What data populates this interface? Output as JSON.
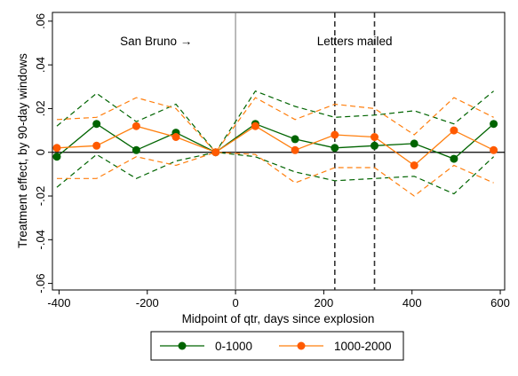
{
  "chart_data": {
    "type": "line",
    "xlabel": "Midpoint of qtr, days since explosion",
    "ylabel": "Treatment effect, by 90-day windows",
    "xlim": [
      -415,
      610
    ],
    "ylim": [
      -0.063,
      0.064
    ],
    "xticks": [
      -400,
      -200,
      0,
      200,
      400,
      600
    ],
    "xtick_labels": [
      "-400",
      "-200",
      "0",
      "200",
      "400",
      "600"
    ],
    "yticks": [
      -0.06,
      -0.04,
      -0.02,
      0,
      0.02,
      0.04,
      0.06
    ],
    "ytick_labels": [
      "-.06",
      "-.04",
      "-.02",
      "0",
      ".02",
      ".04",
      ".06"
    ],
    "grid": false,
    "legend_position": "bottom",
    "hline": 0,
    "vlines": [
      {
        "x": 0,
        "style": "solid"
      },
      {
        "x": 225,
        "style": "dashed"
      },
      {
        "x": 315,
        "style": "dashed"
      }
    ],
    "annotations": [
      {
        "text": "San Bruno →",
        "x": -180,
        "y": 0.049
      },
      {
        "text": "Letters mailed",
        "x": 270,
        "y": 0.049
      }
    ],
    "x": [
      -405,
      -315,
      -225,
      -135,
      -45,
      45,
      135,
      225,
      315,
      405,
      495,
      585
    ],
    "series": [
      {
        "name": "0-1000",
        "color": "#006400",
        "values": [
          -0.002,
          0.013,
          0.001,
          0.009,
          0.0,
          0.013,
          0.006,
          0.002,
          0.003,
          0.004,
          -0.003,
          0.013
        ],
        "ci_upper": [
          0.012,
          0.027,
          0.014,
          0.022,
          0.0,
          0.028,
          0.021,
          0.016,
          0.017,
          0.019,
          0.013,
          0.028
        ],
        "ci_lower": [
          -0.016,
          -0.001,
          -0.012,
          -0.004,
          0.0,
          -0.002,
          -0.009,
          -0.013,
          -0.012,
          -0.011,
          -0.019,
          -0.002
        ]
      },
      {
        "name": "1000-2000",
        "color": "#ff7f0e",
        "values": [
          0.002,
          0.003,
          0.012,
          0.007,
          0.0,
          0.012,
          0.001,
          0.008,
          0.007,
          -0.006,
          0.01,
          0.001
        ],
        "ci_upper": [
          0.015,
          0.016,
          0.025,
          0.02,
          0.0,
          0.025,
          0.015,
          0.022,
          0.02,
          0.008,
          0.025,
          0.016
        ],
        "ci_lower": [
          -0.012,
          -0.012,
          -0.002,
          -0.006,
          0.0,
          -0.001,
          -0.014,
          -0.007,
          -0.007,
          -0.02,
          -0.006,
          -0.014
        ]
      }
    ]
  }
}
